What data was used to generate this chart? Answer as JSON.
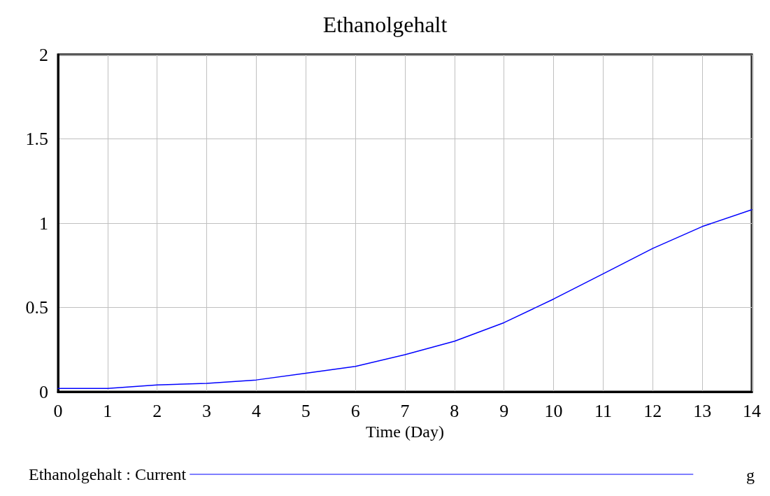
{
  "chart_data": {
    "type": "line",
    "title": "Ethanolgehalt",
    "xlabel": "Time (Day)",
    "x": [
      0,
      1,
      2,
      3,
      4,
      5,
      6,
      7,
      8,
      9,
      10,
      11,
      12,
      13,
      14
    ],
    "series": [
      {
        "name": "Ethanolgehalt : Current",
        "color": "#0000ff",
        "values": [
          0.02,
          0.02,
          0.04,
          0.05,
          0.07,
          0.11,
          0.15,
          0.22,
          0.3,
          0.41,
          0.55,
          0.7,
          0.85,
          0.98,
          1.08
        ]
      }
    ],
    "xlim": [
      0,
      14
    ],
    "xticks": [
      0,
      1,
      2,
      3,
      4,
      5,
      6,
      7,
      8,
      9,
      10,
      11,
      12,
      13,
      14
    ],
    "ylim": [
      0,
      2
    ],
    "yticks": [
      0,
      0.5,
      1,
      1.5,
      2
    ],
    "grid": true,
    "legend": "bottom",
    "marker": "none",
    "line_style": "solid",
    "annotations": [
      "g"
    ]
  }
}
